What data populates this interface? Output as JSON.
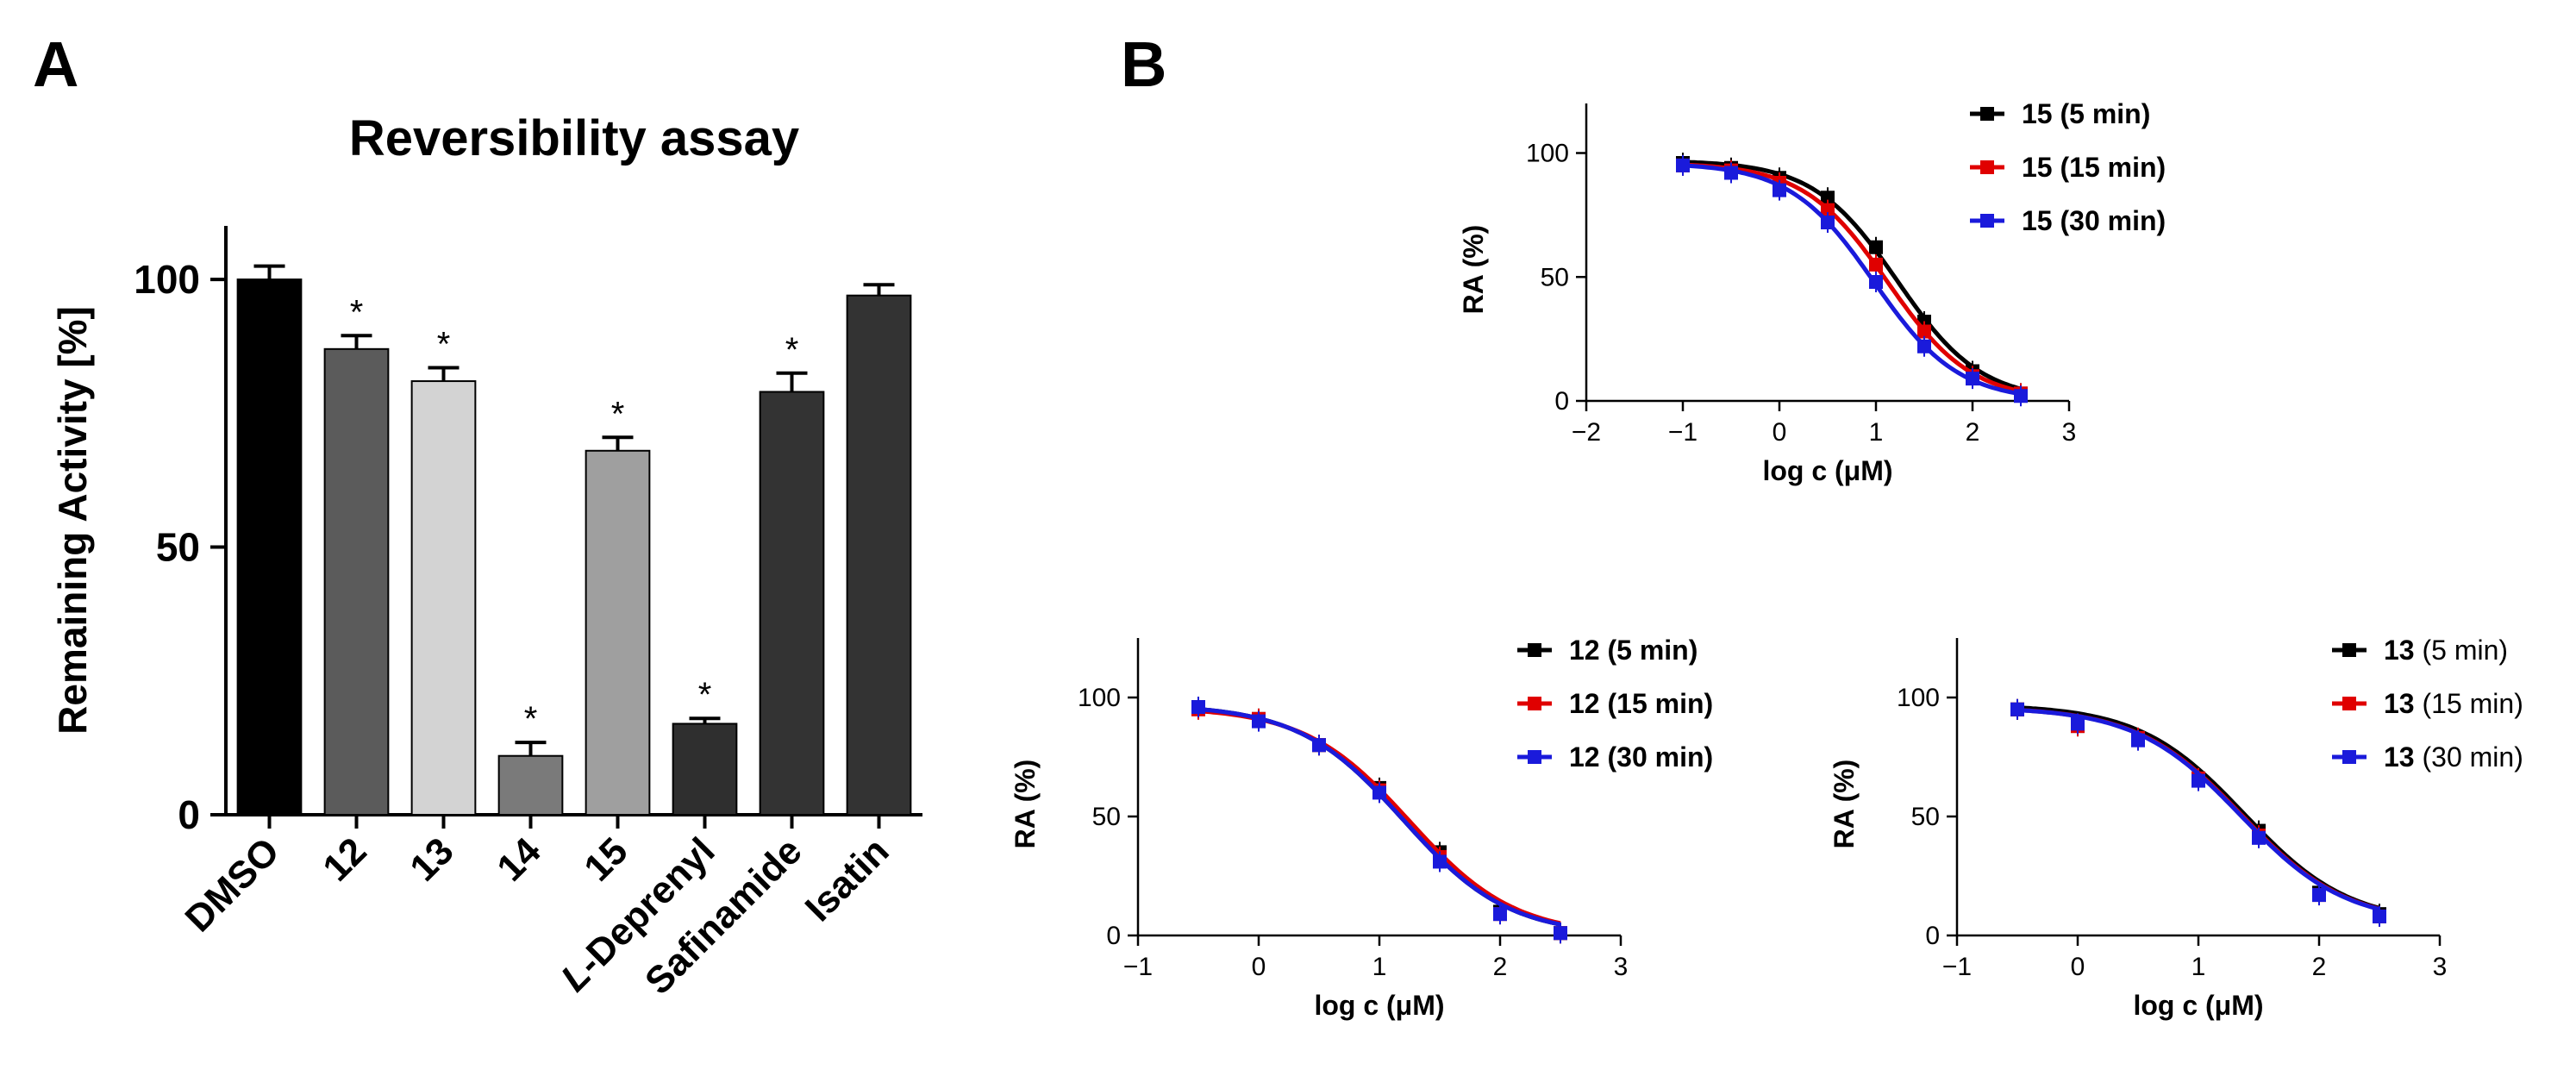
{
  "panel_labels": {
    "a": "A",
    "b": "B"
  },
  "colors": {
    "DMSO": "#000000",
    "12": "#5b5b5b",
    "13": "#d3d3d3",
    "14": "#7a7a7a",
    "15": "#9f9f9f",
    "L-Deprenyl": "#2f2f2f",
    "Safinamide": "#333333",
    "Isatin": "#333333",
    "series_5min": "#000000",
    "series_15min": "#e00000",
    "series_30min": "#1a1adb"
  },
  "chart_data": [
    {
      "id": "A",
      "type": "bar",
      "title": "Reversibility assay",
      "xlabel": "",
      "ylabel": "Remaining Activity [%]",
      "ylim": [
        0,
        110
      ],
      "yticks": [
        0,
        50,
        100
      ],
      "categories": [
        "DMSO",
        "12",
        "13",
        "14",
        "15",
        "L-Deprenyl",
        "Safinamide",
        "Isatin"
      ],
      "category_prefix": {
        "L-Deprenyl": "L"
      },
      "values": [
        100,
        87,
        81,
        11,
        68,
        17,
        79,
        97
      ],
      "errors": [
        2.5,
        2.5,
        2.5,
        2.5,
        2.5,
        1,
        3.5,
        2
      ],
      "significance": [
        "",
        "*",
        "*",
        "*",
        "*",
        "*",
        "*",
        ""
      ]
    },
    {
      "id": "B-15",
      "type": "line",
      "xlabel": "log c (μM)",
      "ylabel": "RA (%)",
      "xlim": [
        -2,
        3
      ],
      "xticks": [
        -2,
        -1,
        0,
        1,
        2,
        3
      ],
      "ylim": [
        0,
        120
      ],
      "yticks": [
        0,
        50,
        100
      ],
      "x": [
        -1,
        -0.5,
        0,
        0.5,
        1,
        1.5,
        2,
        2.5
      ],
      "series": [
        {
          "name": "15 (5 min)",
          "compound": "15",
          "time": "(5 min)",
          "color": "#000000",
          "values": [
            96,
            94,
            90,
            82,
            62,
            32,
            12,
            3
          ],
          "fit": {
            "top": 97,
            "bottom": 0,
            "logic50": 1.22,
            "hill": 1
          }
        },
        {
          "name": "15 (15 min)",
          "compound": "15",
          "time": "(15 min)",
          "color": "#e00000",
          "values": [
            95,
            93,
            88,
            77,
            55,
            28,
            10,
            3
          ],
          "fit": {
            "top": 96,
            "bottom": 0,
            "logic50": 1.12,
            "hill": 1
          }
        },
        {
          "name": "15 (30 min)",
          "compound": "15",
          "time": "(30 min)",
          "color": "#1a1adb",
          "values": [
            95,
            92,
            85,
            72,
            48,
            22,
            9,
            2
          ],
          "fit": {
            "top": 96,
            "bottom": 0,
            "logic50": 0.98,
            "hill": 1
          }
        }
      ]
    },
    {
      "id": "B-12",
      "type": "line",
      "xlabel": "log c (μM)",
      "ylabel": "RA (%)",
      "xlim": [
        -1,
        3
      ],
      "xticks": [
        -1,
        0,
        1,
        2,
        3
      ],
      "ylim": [
        0,
        125
      ],
      "yticks": [
        0,
        50,
        100
      ],
      "x": [
        -0.5,
        0,
        0.5,
        1,
        1.5,
        2,
        2.5
      ],
      "series": [
        {
          "name": "12 (5 min)",
          "compound": "12",
          "time": "(5 min)",
          "color": "#000000",
          "values": [
            96,
            91,
            80,
            62,
            35,
            10,
            1
          ],
          "fit": {
            "top": 97,
            "bottom": 0,
            "logic50": 1.2,
            "hill": 1
          }
        },
        {
          "name": "12 (15 min)",
          "compound": "12",
          "time": "(15 min)",
          "color": "#e00000",
          "values": [
            95,
            91,
            80,
            61,
            33,
            9,
            1
          ],
          "fit": {
            "top": 96,
            "bottom": 0,
            "logic50": 1.25,
            "hill": 1
          }
        },
        {
          "name": "12 (30 min)",
          "compound": "12",
          "time": "(30 min)",
          "color": "#1a1adb",
          "values": [
            96,
            90,
            80,
            60,
            31,
            9,
            1
          ],
          "fit": {
            "top": 97,
            "bottom": 0,
            "logic50": 1.2,
            "hill": 1
          }
        }
      ]
    },
    {
      "id": "B-13",
      "type": "line",
      "xlabel": "log c (μM)",
      "ylabel": "RA (%)",
      "xlim": [
        -1,
        3
      ],
      "xticks": [
        -1,
        0,
        1,
        2,
        3
      ],
      "ylim": [
        0,
        125
      ],
      "yticks": [
        0,
        50,
        100
      ],
      "x": [
        -0.5,
        0,
        0.5,
        1,
        1.5,
        2,
        2.5
      ],
      "series": [
        {
          "name": "13 (5 min)",
          "compound": "13",
          "time": "(5 min)",
          "color": "#000000",
          "values": [
            95,
            88,
            83,
            66,
            44,
            18,
            9
          ],
          "fit": {
            "top": 97,
            "bottom": 5,
            "logic50": 1.38,
            "hill": 1
          }
        },
        {
          "name": "13 (15 min)",
          "compound": "13",
          "time": "(15 min)",
          "color": "#e00000",
          "values": [
            95,
            88,
            83,
            66,
            42,
            17,
            8
          ],
          "fit": {
            "top": 96,
            "bottom": 5,
            "logic50": 1.36,
            "hill": 1
          }
        },
        {
          "name": "13 (30 min)",
          "compound": "13",
          "time": "(30 min)",
          "color": "#1a1adb",
          "values": [
            95,
            89,
            82,
            65,
            41,
            17,
            8
          ],
          "fit": {
            "top": 96,
            "bottom": 5,
            "logic50": 1.35,
            "hill": 1
          }
        }
      ]
    }
  ]
}
